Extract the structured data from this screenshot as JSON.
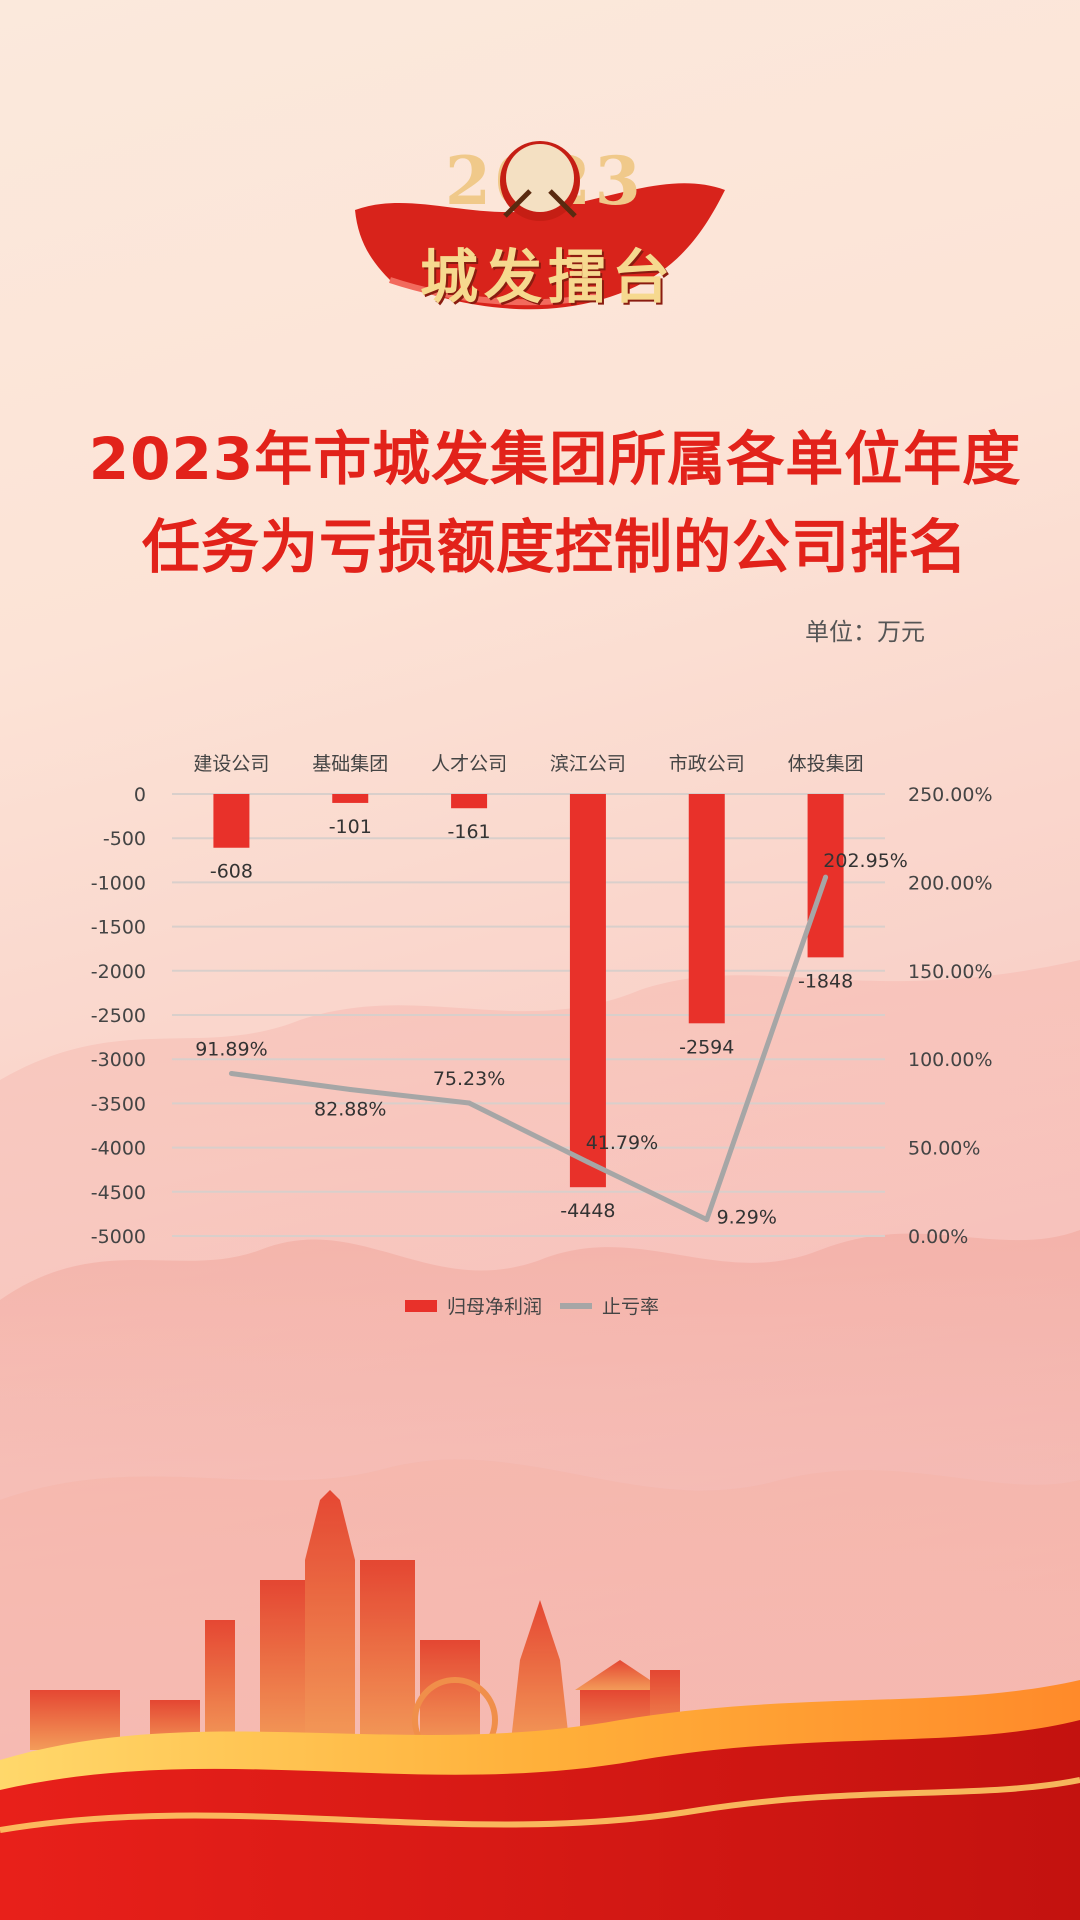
{
  "logo": {
    "year": "2023",
    "name": "城发擂台",
    "drum_icon": "drum-icon",
    "ribbon_color": "#d8231b"
  },
  "title": {
    "line1": "2023年市城发集团所属各单位年度",
    "line2": "任务为亏损额度控制的公司排名"
  },
  "unit": "单位：万元",
  "colors": {
    "bar": "#e8312a",
    "line": "#a6a6a6",
    "title": "#e2221a"
  },
  "chart_data": {
    "type": "bar",
    "categories": [
      "建设公司",
      "基础集团",
      "人才公司",
      "滨江公司",
      "市政公司",
      "体投集团"
    ],
    "series": [
      {
        "name": "归母净利润",
        "type": "bar",
        "axis": "left",
        "values": [
          -608,
          -101,
          -161,
          -4448,
          -2594,
          -1848
        ],
        "labels": [
          "-608",
          "-101",
          "-161",
          "-4448",
          "-2594",
          "-1848"
        ]
      },
      {
        "name": "止亏率",
        "type": "line",
        "axis": "right",
        "values": [
          91.89,
          82.88,
          75.23,
          41.79,
          9.29,
          202.95
        ],
        "labels": [
          "91.89%",
          "82.88%",
          "75.23%",
          "41.79%",
          "9.29%",
          "202.95%"
        ]
      }
    ],
    "y_left": {
      "ticks": [
        "0",
        "-500",
        "-1000",
        "-1500",
        "-2000",
        "-2500",
        "-3000",
        "-3500",
        "-4000",
        "-4500",
        "-5000"
      ],
      "ylim": [
        -5000,
        0
      ]
    },
    "y_right": {
      "ticks": [
        "250.00%",
        "200.00%",
        "150.00%",
        "100.00%",
        "50.00%",
        "0.00%"
      ],
      "ylim": [
        0,
        250
      ]
    },
    "category_axis_position": "top",
    "grid": true,
    "legend": {
      "position": "bottom",
      "entries": [
        "归母净利润",
        "止亏率"
      ]
    }
  }
}
